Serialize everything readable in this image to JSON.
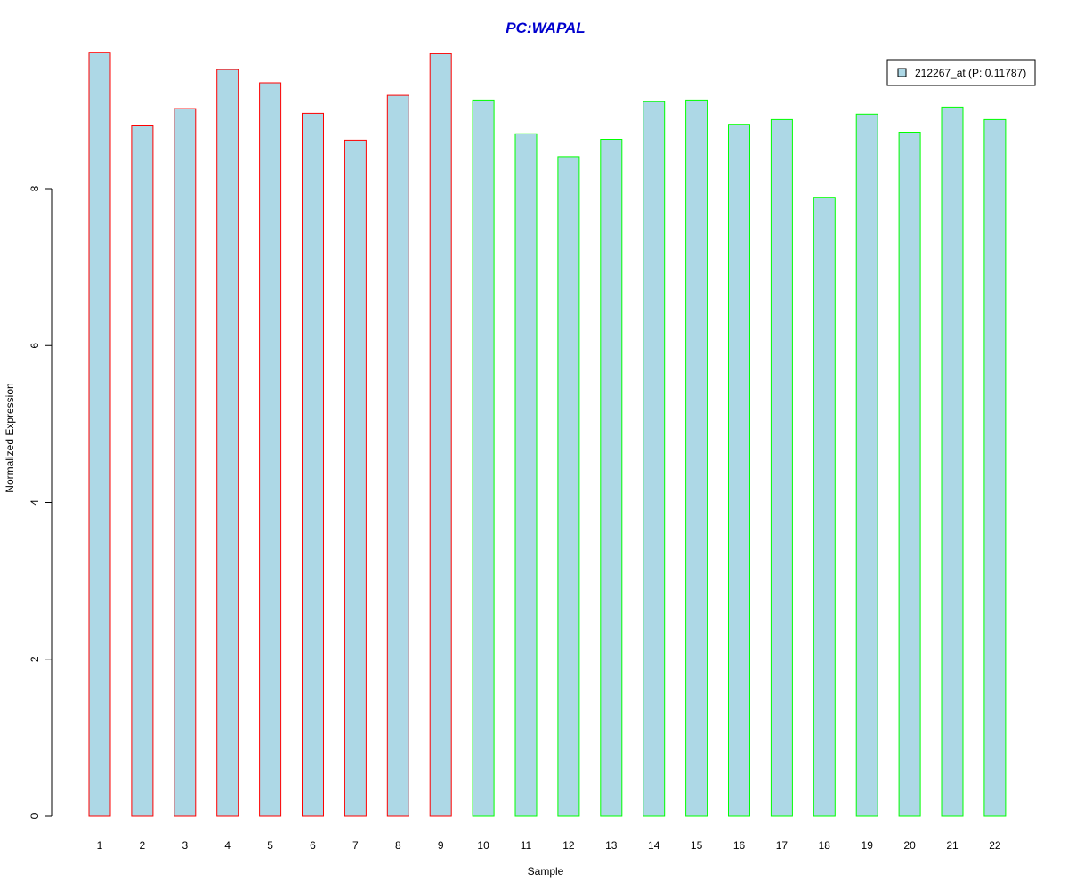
{
  "chart_data": {
    "type": "bar",
    "title": "PC:WAPAL",
    "xlabel": "Sample",
    "ylabel": "Normalized Expression",
    "categories": [
      "1",
      "2",
      "3",
      "4",
      "5",
      "6",
      "7",
      "8",
      "9",
      "10",
      "11",
      "12",
      "13",
      "14",
      "15",
      "16",
      "17",
      "18",
      "19",
      "20",
      "21",
      "22"
    ],
    "series": [
      {
        "name": "212267_at (P: 0.11787)",
        "values": [
          9.74,
          8.8,
          9.02,
          9.52,
          9.35,
          8.96,
          8.62,
          9.19,
          9.72,
          9.13,
          8.7,
          8.41,
          8.63,
          9.11,
          9.13,
          8.82,
          8.88,
          7.89,
          8.95,
          8.72,
          9.04,
          8.88
        ]
      }
    ],
    "group_sizes": [
      9,
      13
    ],
    "yticks": [
      0,
      2,
      4,
      6,
      8
    ],
    "ylim": [
      0,
      9.9
    ],
    "grid": false,
    "legend_position": "top-right",
    "colors": {
      "bar_fill": "#add8e6",
      "group_1_border": "#ff0000",
      "group_2_border": "#00ff00",
      "title": "#0000cd",
      "axis": "#000000"
    }
  }
}
